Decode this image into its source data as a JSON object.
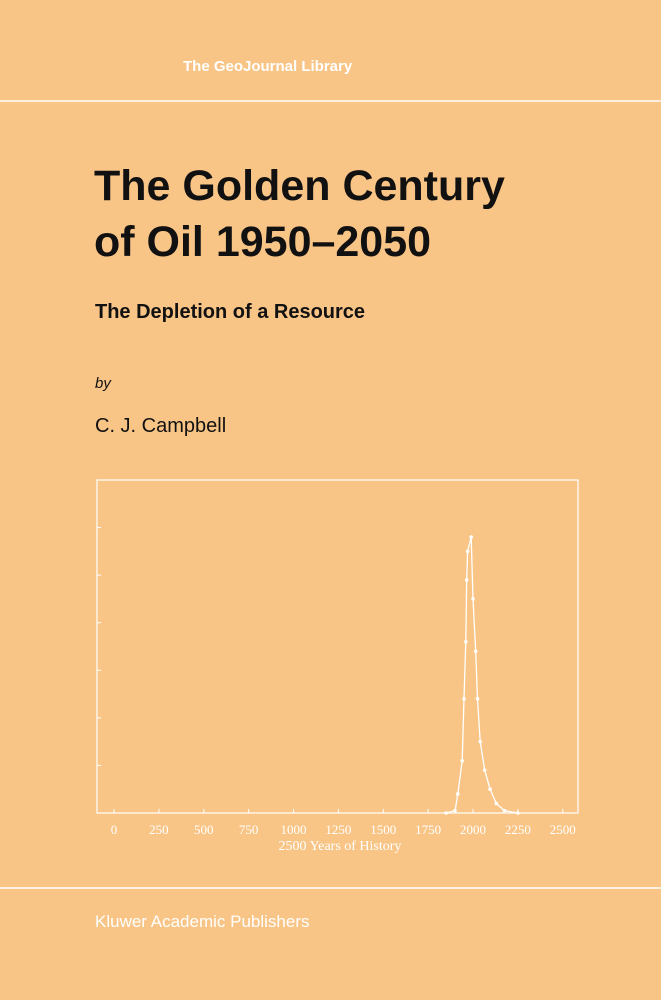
{
  "series_name": "The GeoJournal Library",
  "title": [
    "The Golden Century",
    "of Oil 1950–2050"
  ],
  "subtitle": "The Depletion of a Resource",
  "by": "by",
  "author": "C. J. Campbell",
  "chart_data": {
    "type": "line",
    "xlabel": "2500 Years of History",
    "color": "#ffffff",
    "x": [
      1850,
      1900,
      1915,
      1940,
      1950,
      1960,
      1965,
      1970,
      1990,
      2000,
      2015,
      2025,
      2040,
      2065,
      2095,
      2130,
      2175,
      2250
    ],
    "values": [
      0,
      0.05,
      0.4,
      1.1,
      2.4,
      3.6,
      4.9,
      5.5,
      5.8,
      4.5,
      3.4,
      2.4,
      1.5,
      0.9,
      0.5,
      0.2,
      0.05,
      0
    ],
    "xlim": [
      -95,
      2585
    ],
    "ylim": [
      0,
      7
    ],
    "xticks": [
      0,
      250,
      500,
      750,
      1000,
      1250,
      1500,
      1750,
      2000,
      2250,
      2500
    ],
    "yticks": [
      1,
      2,
      3,
      4,
      5,
      6
    ]
  },
  "publisher": "Kluwer Academic Publishers"
}
